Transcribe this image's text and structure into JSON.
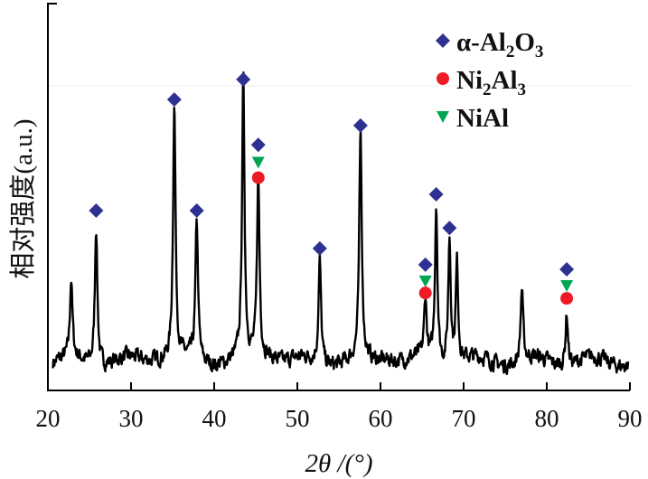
{
  "chart_data": {
    "type": "line",
    "title": "",
    "xlabel": "2θ /(°)",
    "ylabel": "相对强度(a.u.)",
    "xlim": [
      20,
      90
    ],
    "ylim": [
      0,
      100
    ],
    "xticks": [
      "20",
      "30",
      "40",
      "50",
      "60",
      "70",
      "80",
      "90"
    ],
    "xtick_values": [
      20,
      30,
      40,
      50,
      60,
      70,
      80,
      90
    ],
    "grid": false,
    "legend_position": "top-right",
    "colors": {
      "curve": "#000000",
      "alumina": "#2e3192",
      "ni2al3": "#ed1c24",
      "nial": "#00a651"
    },
    "baseline": 7.5,
    "peaks": [
      {
        "two_theta": 22.8,
        "intensity": 27.8
      },
      {
        "two_theta": 25.8,
        "intensity": 43.7
      },
      {
        "two_theta": 35.2,
        "intensity": 73
      },
      {
        "two_theta": 37.9,
        "intensity": 43.7
      },
      {
        "two_theta": 43.5,
        "intensity": 79
      },
      {
        "two_theta": 45.3,
        "intensity": 54
      },
      {
        "two_theta": 52.7,
        "intensity": 34
      },
      {
        "two_theta": 57.6,
        "intensity": 66
      },
      {
        "two_theta": 65.4,
        "intensity": 23
      },
      {
        "two_theta": 66.7,
        "intensity": 48
      },
      {
        "two_theta": 68.3,
        "intensity": 40
      },
      {
        "two_theta": 69.2,
        "intensity": 33
      },
      {
        "two_theta": 77.0,
        "intensity": 26
      },
      {
        "two_theta": 82.4,
        "intensity": 21
      }
    ],
    "legend": [
      {
        "name": "α-Al",
        "sub1": "2",
        "mid": "O",
        "sub2": "3",
        "marker": "diamond",
        "color": "#2e3192"
      },
      {
        "name": "Ni",
        "sub1": "2",
        "mid": "Al",
        "sub2": "3",
        "marker": "circle",
        "color": "#ed1c24"
      },
      {
        "name": "NiAl",
        "sub1": "",
        "mid": "",
        "sub2": "",
        "marker": "triangle",
        "color": "#00a651"
      }
    ],
    "markers": [
      {
        "phase": "alumina",
        "marker": "diamond",
        "two_theta": 25.8,
        "y": 46.5
      },
      {
        "phase": "alumina",
        "marker": "diamond",
        "two_theta": 35.2,
        "y": 75.2
      },
      {
        "phase": "alumina",
        "marker": "diamond",
        "two_theta": 37.9,
        "y": 46.5
      },
      {
        "phase": "alumina",
        "marker": "diamond",
        "two_theta": 43.5,
        "y": 80.4
      },
      {
        "phase": "alumina",
        "marker": "diamond",
        "two_theta": 45.3,
        "y": 63.5
      },
      {
        "phase": "alumina",
        "marker": "diamond",
        "two_theta": 52.7,
        "y": 36.7
      },
      {
        "phase": "alumina",
        "marker": "diamond",
        "two_theta": 57.6,
        "y": 68.5
      },
      {
        "phase": "alumina",
        "marker": "diamond",
        "two_theta": 65.4,
        "y": 32.5
      },
      {
        "phase": "alumina",
        "marker": "diamond",
        "two_theta": 66.7,
        "y": 50.7
      },
      {
        "phase": "alumina",
        "marker": "diamond",
        "two_theta": 68.3,
        "y": 42
      },
      {
        "phase": "alumina",
        "marker": "diamond",
        "two_theta": 82.4,
        "y": 31.3
      },
      {
        "phase": "nial",
        "marker": "triangle",
        "two_theta": 45.3,
        "y": 59
      },
      {
        "phase": "nial",
        "marker": "triangle",
        "two_theta": 65.4,
        "y": 28.3
      },
      {
        "phase": "nial",
        "marker": "triangle",
        "two_theta": 82.4,
        "y": 27.1
      },
      {
        "phase": "ni2al3",
        "marker": "circle",
        "two_theta": 45.3,
        "y": 55
      },
      {
        "phase": "ni2al3",
        "marker": "circle",
        "two_theta": 65.4,
        "y": 25.2
      },
      {
        "phase": "ni2al3",
        "marker": "circle",
        "two_theta": 82.4,
        "y": 23.8
      }
    ]
  }
}
